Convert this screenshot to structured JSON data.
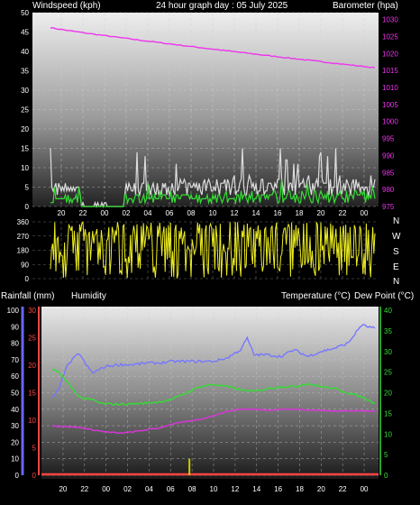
{
  "header": {
    "windspeed_label": "Windspeed (kph)",
    "graph_title": "24 hour graph day : 05 July 2025",
    "barometer_label": "Barometer (hpa)"
  },
  "lower_header": {
    "rainfall_label": "Rainfall (mm)",
    "humidity_label": "Humidity",
    "temperature_label": "Temperature (°C)",
    "dewpoint_label": "Dew Point (°C)"
  },
  "compass_letters": [
    "N",
    "W",
    "S",
    "E",
    "N"
  ],
  "colors": {
    "background": "#000000",
    "wind_avg": "#33dd33",
    "wind_gust": "#dddddd",
    "wind_gust_baseline": "#ffffff",
    "barometer": "#ee33ee",
    "wind_direction": "#eeee22",
    "humidity": "#7777ff",
    "temperature": "#33dd33",
    "dew_point": "#dd33dd",
    "rainfall": "#ff4444",
    "rain_rate": "#cccc00",
    "axis_left": "#6666ff",
    "axis_rain": "#ff4444",
    "axis_temp": "#33dd33"
  },
  "chart_data": [
    {
      "type": "line",
      "x_ticks": [
        "20",
        "22",
        "00",
        "02",
        "04",
        "06",
        "08",
        "10",
        "12",
        "14",
        "16",
        "18",
        "20",
        "22",
        "00"
      ],
      "y_left_ticks": [
        "0",
        "5",
        "10",
        "15",
        "20",
        "25",
        "30",
        "35",
        "40",
        "45",
        "50"
      ],
      "y_right_ticks": [
        "975",
        "980",
        "985",
        "990",
        "995",
        "1000",
        "1005",
        "1010",
        "1015",
        "1020",
        "1025",
        "1030"
      ],
      "ylim_left": [
        0,
        50
      ],
      "ylim_right": [
        975,
        1032
      ],
      "grid": true,
      "series": [
        {
          "axis": "right",
          "start": 1027.6,
          "end": 1015.8
        },
        {
          "axis": "left",
          "gust_base": 3,
          "gust_peak": 15,
          "avg_base": 2,
          "avg_peak": 9
        }
      ]
    },
    {
      "type": "scatter",
      "y_ticks": [
        "360",
        "270",
        "180",
        "90",
        "0"
      ],
      "ylim": [
        0,
        360
      ],
      "grid": true
    },
    {
      "type": "line",
      "x_ticks": [
        "20",
        "22",
        "00",
        "02",
        "04",
        "06",
        "08",
        "10",
        "12",
        "14",
        "16",
        "18",
        "20",
        "22",
        "00"
      ],
      "y_humidity_ticks": [
        "0",
        "10",
        "20",
        "30",
        "40",
        "50",
        "60",
        "70",
        "80",
        "90",
        "100"
      ],
      "y_rain_ticks": [
        "0",
        "5",
        "10",
        "15",
        "20",
        "25",
        "30"
      ],
      "y_temp_ticks": [
        "0",
        "5",
        "10",
        "15",
        "20",
        "25",
        "30",
        "35",
        "40"
      ],
      "ylim_humidity": [
        0,
        100
      ],
      "ylim_rain": [
        0,
        30
      ],
      "ylim_temp": [
        0,
        40
      ],
      "grid": true,
      "series": [
        {
          "axis": "humidity",
          "x": [
            0,
            0.5,
            1,
            1.5,
            2,
            2.5,
            3,
            3.5,
            4,
            5,
            6,
            7,
            8,
            9,
            10,
            11,
            12,
            13,
            14,
            14.5,
            15,
            16,
            17,
            18,
            19,
            20,
            21,
            22,
            23,
            24
          ],
          "values": [
            47,
            52,
            65,
            70,
            74,
            67,
            62,
            64,
            66,
            67,
            67,
            68,
            68,
            69,
            69,
            69,
            69,
            71,
            76,
            83,
            73,
            73,
            72,
            76,
            72,
            75,
            77,
            80,
            91,
            89
          ]
        },
        {
          "axis": "temp",
          "x": [
            0,
            0.5,
            1,
            1.5,
            2,
            2.5,
            3,
            3.5,
            4,
            5,
            6,
            7,
            8,
            9,
            10,
            11,
            12,
            13,
            14,
            15,
            16,
            17,
            18,
            19,
            20,
            21,
            22,
            23,
            24
          ],
          "values": [
            25.5,
            25,
            23,
            21,
            19,
            18.5,
            18.3,
            17.5,
            17.3,
            17.2,
            17.3,
            17.5,
            17.8,
            18.5,
            20,
            21.5,
            22,
            21.5,
            20.7,
            20.3,
            21,
            21.5,
            21.5,
            22.2,
            21.5,
            21,
            20,
            19,
            17.5
          ]
        },
        {
          "axis": "temp",
          "x": [
            0,
            1,
            2,
            3,
            4,
            5,
            6,
            7,
            8,
            9,
            10,
            11,
            12,
            13,
            14,
            15,
            16,
            17,
            18,
            19,
            20,
            21,
            22,
            23,
            24
          ],
          "values": [
            12,
            11.8,
            11.6,
            11,
            10.5,
            10.2,
            10.5,
            11,
            11.5,
            12.5,
            13,
            13.5,
            14.5,
            15.5,
            16,
            16,
            15.8,
            16,
            16,
            15.8,
            15.7,
            15.6,
            15.6,
            15.6,
            15.5
          ]
        },
        {
          "axis": "rain",
          "x": [
            0,
            24
          ],
          "values": [
            0,
            0
          ]
        },
        {
          "axis": "rain",
          "x": [
            10.2
          ],
          "values": [
            3
          ]
        }
      ]
    }
  ]
}
